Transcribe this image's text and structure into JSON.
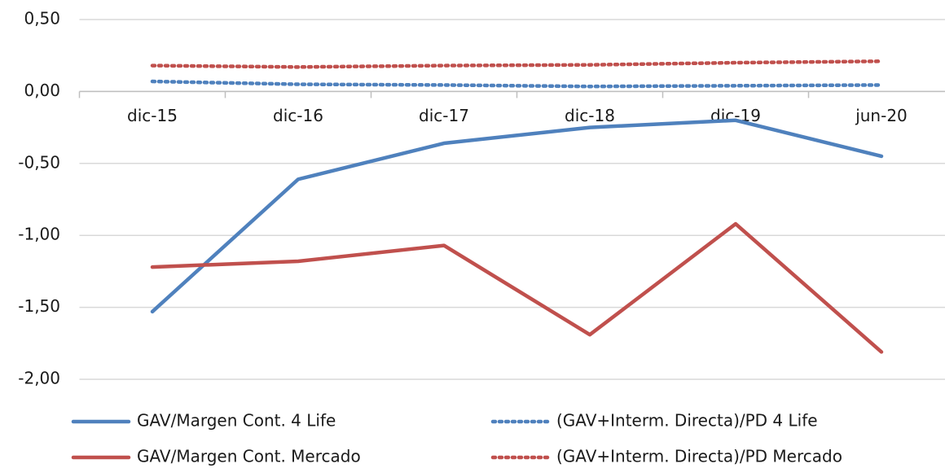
{
  "chart_data": {
    "type": "line",
    "categories": [
      "dic-15",
      "dic-16",
      "dic-17",
      "dic-18",
      "dic-19",
      "jun-20"
    ],
    "series": [
      {
        "name": "GAV/Margen Cont. 4 Life",
        "color": "#4f81bd",
        "style": "solid",
        "values": [
          -1.53,
          -0.61,
          -0.36,
          -0.25,
          -0.2,
          -0.45
        ]
      },
      {
        "name": "(GAV+Interm. Directa)/PD 4 Life",
        "color": "#4f81bd",
        "style": "dotted",
        "values": [
          0.07,
          0.05,
          0.045,
          0.035,
          0.04,
          0.045
        ]
      },
      {
        "name": "GAV/Margen Cont. Mercado",
        "color": "#c0504d",
        "style": "solid",
        "values": [
          -1.22,
          -1.18,
          -1.07,
          -1.69,
          -0.92,
          -1.81
        ]
      },
      {
        "name": "(GAV+Interm. Directa)/PD Mercado",
        "color": "#c0504d",
        "style": "dotted",
        "values": [
          0.18,
          0.17,
          0.18,
          0.185,
          0.2,
          0.21
        ]
      }
    ],
    "ylim": [
      -2,
      0.5
    ],
    "yticks": [
      {
        "value": -2,
        "label": "-2,00"
      },
      {
        "value": -1.5,
        "label": "-1,50"
      },
      {
        "value": -1,
        "label": "-1,00"
      },
      {
        "value": -0.5,
        "label": "-0,50"
      },
      {
        "value": 0,
        "label": "0,00"
      },
      {
        "value": 0.5,
        "label": "0,50"
      }
    ],
    "grid": true,
    "legend": "bottom"
  }
}
